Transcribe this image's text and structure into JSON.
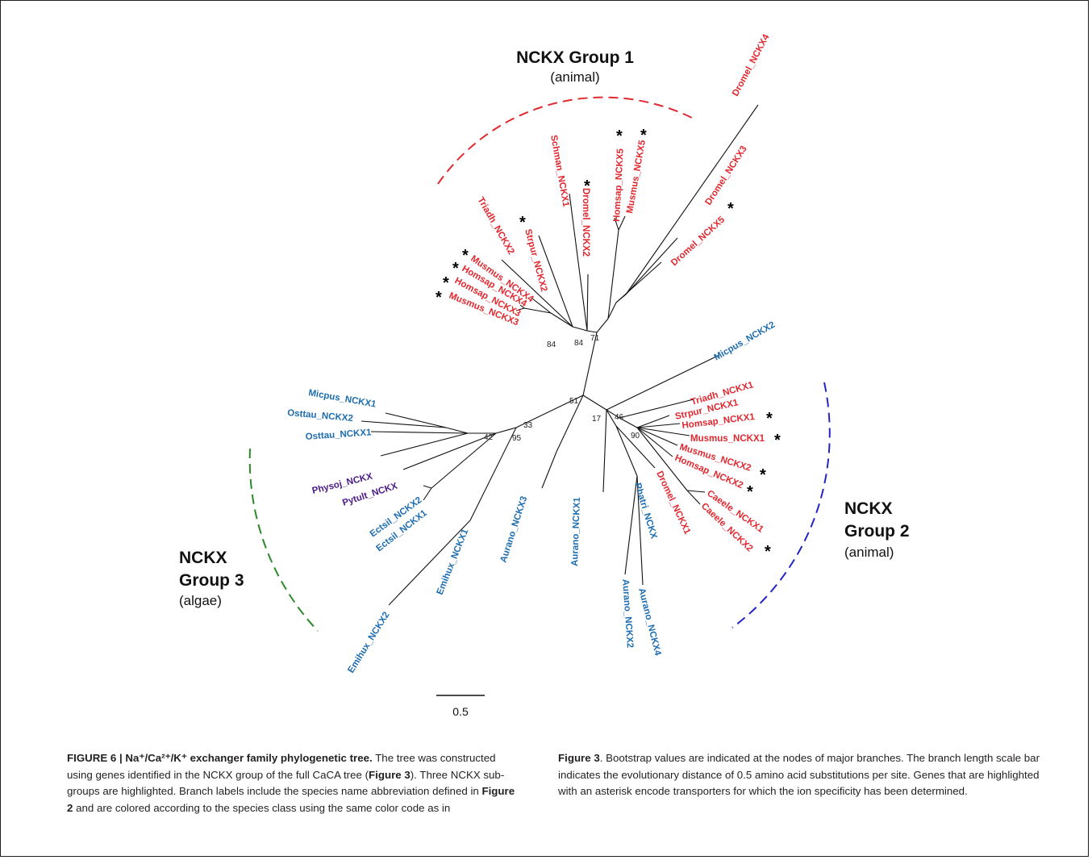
{
  "colors": {
    "animal": "#e0282f",
    "algae_blue": "#1d6db0",
    "algae_purple": "#4b1a87",
    "group1_arc": "#e0282f",
    "group2_arc": "#2424c8",
    "group3_arc": "#2a8a2a"
  },
  "groups": {
    "g1": {
      "line1": "NCKX Group 1",
      "line2": "(animal)"
    },
    "g2": {
      "line1": "NCKX",
      "line2": "Group 2",
      "line3": "(animal)"
    },
    "g3": {
      "line1": "NCKX",
      "line2": "Group 3",
      "line3": "(algae)"
    }
  },
  "scale_bar": {
    "label": "0.5"
  },
  "asterisk": "*",
  "leaves": [
    {
      "name": "Dromel_NCKX4",
      "color": "animal",
      "star": false
    },
    {
      "name": "Dromel_NCKX3",
      "color": "animal",
      "star": false
    },
    {
      "name": "Dromel_NCKX5",
      "color": "animal",
      "star": true
    },
    {
      "name": "Homsap_NCKX5",
      "color": "animal",
      "star": true
    },
    {
      "name": "Musmus_NCKX5",
      "color": "animal",
      "star": true
    },
    {
      "name": "Dromel_NCKX2",
      "color": "animal",
      "star": true
    },
    {
      "name": "Schman_NCKX1",
      "color": "animal",
      "star": false
    },
    {
      "name": "Strpur_NCKX2",
      "color": "animal",
      "star": true
    },
    {
      "name": "Triadh_NCKX2",
      "color": "animal",
      "star": false
    },
    {
      "name": "Musmus_NCKX4",
      "color": "animal",
      "star": true
    },
    {
      "name": "Homsap_NCKX4",
      "color": "animal",
      "star": true
    },
    {
      "name": "Homsap_NCKX3",
      "color": "animal",
      "star": true
    },
    {
      "name": "Musmus_NCKX3",
      "color": "animal",
      "star": true
    },
    {
      "name": "Micpus_NCKX2",
      "color": "algae_blue",
      "star": false
    },
    {
      "name": "Triadh_NCKX1",
      "color": "animal",
      "star": false
    },
    {
      "name": "Strpur_NCKX1",
      "color": "animal",
      "star": false
    },
    {
      "name": "Homsap_NCKX1",
      "color": "animal",
      "star": true
    },
    {
      "name": "Musmus_NCKX1",
      "color": "animal",
      "star": true
    },
    {
      "name": "Musmus_NCKX2",
      "color": "animal",
      "star": true
    },
    {
      "name": "Homsap_NCKX2",
      "color": "animal",
      "star": true
    },
    {
      "name": "Caeele_NCKX1",
      "color": "animal",
      "star": true
    },
    {
      "name": "Caeele_NCKX2",
      "color": "animal",
      "star": false
    },
    {
      "name": "Dromel_NCKX1",
      "color": "animal",
      "star": false
    },
    {
      "name": "Phatri_NCKX",
      "color": "algae_blue",
      "star": false
    },
    {
      "name": "Aurano_NCKX4",
      "color": "algae_blue",
      "star": false
    },
    {
      "name": "Aurano_NCKX2",
      "color": "algae_blue",
      "star": false
    },
    {
      "name": "Aurano_NCKX1",
      "color": "algae_blue",
      "star": false
    },
    {
      "name": "Aurano_NCKX3",
      "color": "algae_blue",
      "star": false
    },
    {
      "name": "Emihux_NCKX1",
      "color": "algae_blue",
      "star": false
    },
    {
      "name": "Emihux_NCKX2",
      "color": "algae_blue",
      "star": false
    },
    {
      "name": "Ectsil_NCKX1",
      "color": "algae_blue",
      "star": false
    },
    {
      "name": "Ectsil_NCKX2",
      "color": "algae_blue",
      "star": false
    },
    {
      "name": "Pytult_NCKX",
      "color": "algae_purple",
      "star": false
    },
    {
      "name": "Physoj_NCKX",
      "color": "algae_purple",
      "star": false
    },
    {
      "name": "Osttau_NCKX1",
      "color": "algae_blue",
      "star": false
    },
    {
      "name": "Osttau_NCKX2",
      "color": "algae_blue",
      "star": false
    },
    {
      "name": "Micpus_NCKX1",
      "color": "algae_blue",
      "star": false
    }
  ],
  "bootstrap": [
    "84",
    "84",
    "71",
    "51",
    "46",
    "90",
    "17",
    "33",
    "95",
    "42"
  ],
  "caption": {
    "fig_label": "FIGURE 6 | Na⁺/Ca²⁺/K⁺ exchanger family phylogenetic tree.",
    "left_a": " The tree was constructed using genes identified in the NCKX group of the full CaCA tree (",
    "fig3_a": "Figure 3",
    "left_b": "). Three NCKX sub-groups are highlighted. Branch labels include the species name abbreviation defined in ",
    "fig2": "Figure 2",
    "left_c": " and are colored according to the species class using the same color code as in",
    "fig3_b": "Figure 3",
    "right_a": ". Bootstrap values are indicated at the nodes of major branches. The branch length scale bar indicates the evolutionary distance of 0.5 amino acid substitutions per site. Genes that are highlighted with an asterisk encode transporters for which the ion specificity has been determined."
  }
}
